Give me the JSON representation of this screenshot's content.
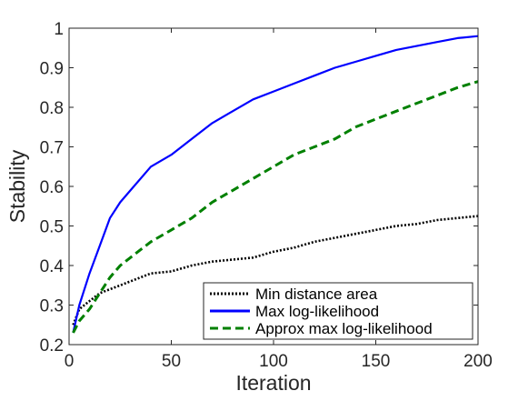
{
  "chart_data": {
    "type": "line",
    "title": "",
    "xlabel": "Iteration",
    "ylabel": "Stability",
    "xlim": [
      0,
      200
    ],
    "ylim": [
      0.2,
      1
    ],
    "xticks": [
      0,
      50,
      100,
      150,
      200
    ],
    "yticks": [
      0.2,
      0.3,
      0.4,
      0.5,
      0.6,
      0.7,
      0.8,
      0.9,
      1
    ],
    "xtick_labels": [
      "0",
      "50",
      "100",
      "150",
      "200"
    ],
    "ytick_labels": [
      "0.2",
      "0.3",
      "0.4",
      "0.5",
      "0.6",
      "0.7",
      "0.8",
      "0.9",
      "1"
    ],
    "grid": false,
    "legend_position": "bottom-right",
    "x": [
      2,
      5,
      10,
      15,
      20,
      25,
      30,
      40,
      50,
      60,
      70,
      80,
      90,
      100,
      110,
      120,
      130,
      140,
      150,
      160,
      170,
      180,
      190,
      200
    ],
    "series": [
      {
        "name": "Min distance area",
        "color": "#000000",
        "dash": "dotted",
        "values": [
          0.25,
          0.29,
          0.31,
          0.33,
          0.34,
          0.35,
          0.36,
          0.38,
          0.385,
          0.4,
          0.41,
          0.415,
          0.42,
          0.435,
          0.445,
          0.46,
          0.47,
          0.48,
          0.49,
          0.5,
          0.505,
          0.515,
          0.52,
          0.525
        ]
      },
      {
        "name": "Max log-likelihood",
        "color": "#0000ff",
        "dash": "solid",
        "values": [
          0.23,
          0.3,
          0.38,
          0.45,
          0.52,
          0.56,
          0.59,
          0.65,
          0.68,
          0.72,
          0.76,
          0.79,
          0.82,
          0.84,
          0.86,
          0.88,
          0.9,
          0.915,
          0.93,
          0.945,
          0.955,
          0.965,
          0.975,
          0.98
        ]
      },
      {
        "name": "Approx max log-likelihood",
        "color": "#008000",
        "dash": "dashed",
        "values": [
          0.23,
          0.26,
          0.29,
          0.33,
          0.37,
          0.4,
          0.42,
          0.46,
          0.49,
          0.52,
          0.56,
          0.59,
          0.62,
          0.65,
          0.68,
          0.7,
          0.72,
          0.75,
          0.77,
          0.79,
          0.81,
          0.83,
          0.85,
          0.865
        ]
      }
    ]
  }
}
